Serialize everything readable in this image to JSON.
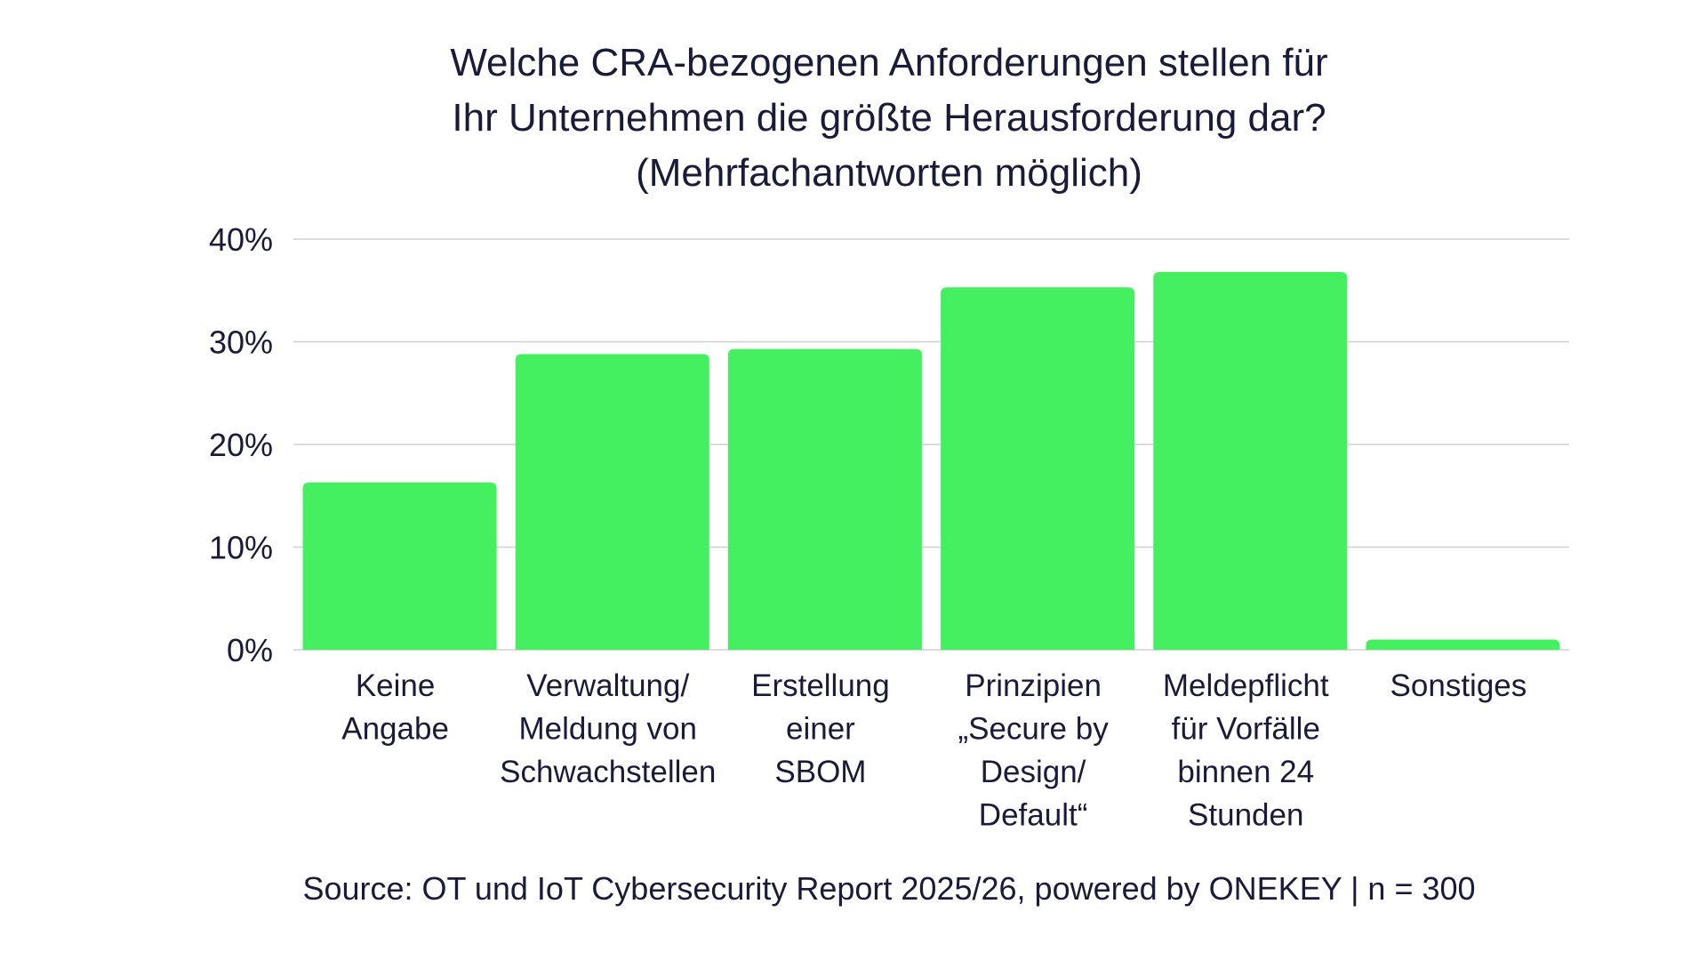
{
  "chart_data": {
    "type": "bar",
    "title_lines": [
      "Welche CRA-bezogenen Anforderungen stellen für",
      "Ihr Unternehmen die größte Herausforderung dar?",
      "(Mehrfachantworten möglich)"
    ],
    "categories": [
      [
        "Keine",
        "Angabe"
      ],
      [
        "Verwaltung/",
        "Meldung von",
        "Schwachstellen"
      ],
      [
        "Erstellung",
        "einer",
        "SBOM"
      ],
      [
        "Prinzipien",
        "„Secure by",
        "Design/",
        "Default“"
      ],
      [
        "Meldepflicht",
        "für Vorfälle",
        "binnen 24",
        "Stunden"
      ],
      [
        "Sonstiges"
      ]
    ],
    "values": [
      16.3,
      28.8,
      29.3,
      35.3,
      36.8,
      1.0
    ],
    "y_ticks": [
      "0%",
      "10%",
      "20%",
      "30%",
      "40%"
    ],
    "y_tick_values": [
      0,
      10,
      20,
      30,
      40
    ],
    "ylim": [
      0,
      40
    ],
    "grid": true,
    "bar_color": "#44f05f",
    "source": "Source: OT und IoT Cybersecurity Report 2025/26, powered by ONEKEY | n = 300"
  }
}
